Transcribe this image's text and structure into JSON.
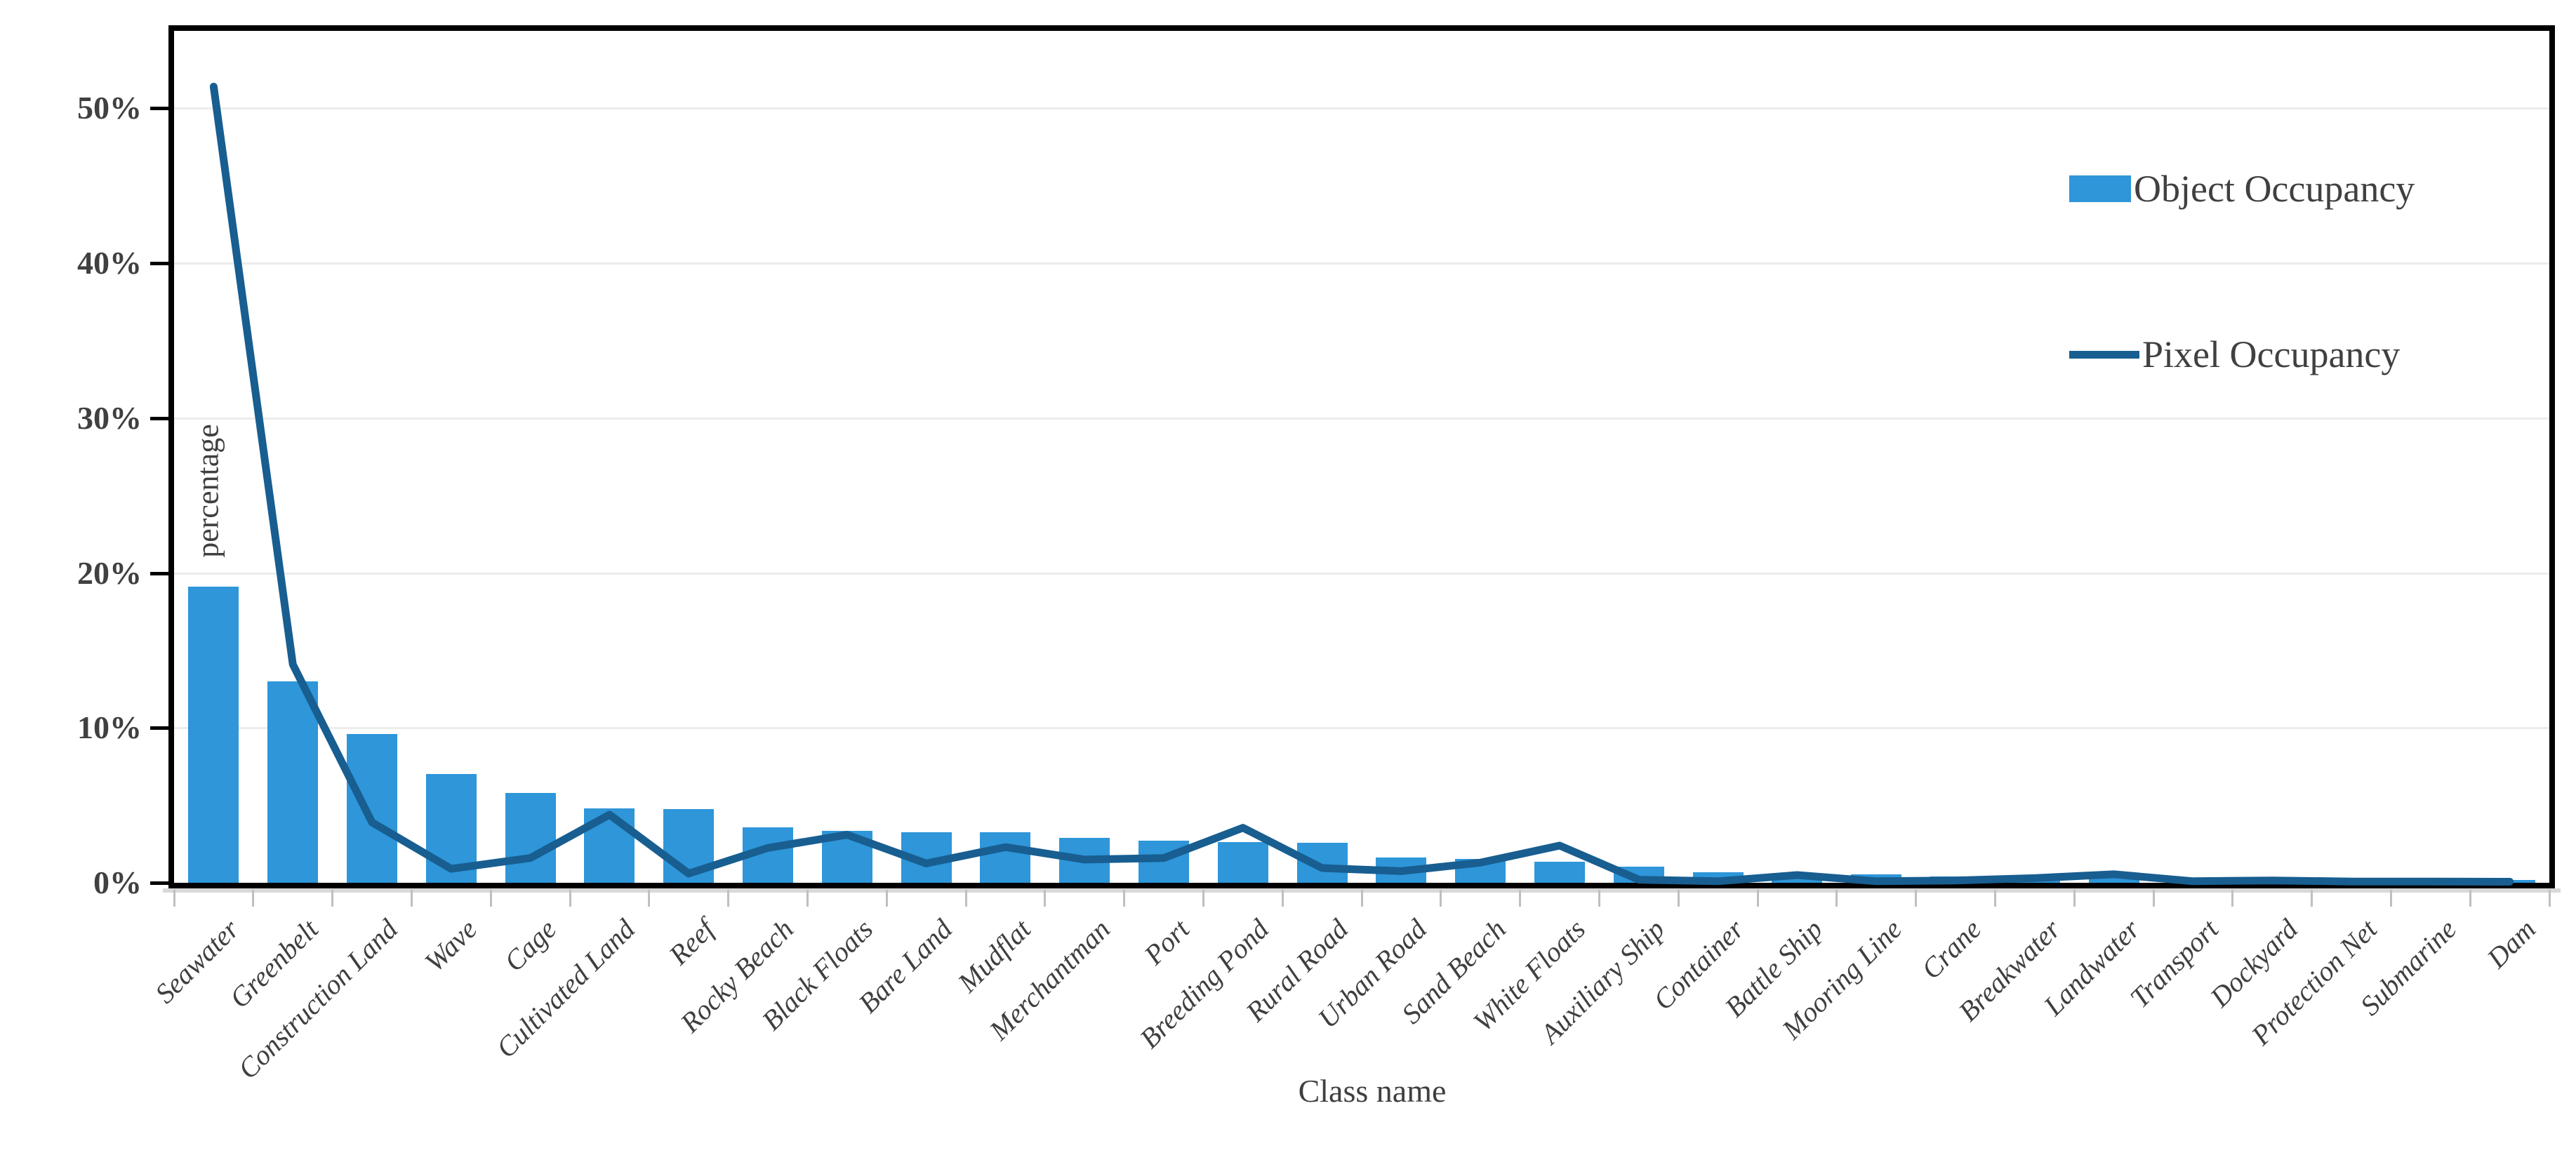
{
  "chart_data": {
    "type": "bar",
    "title": "",
    "xlabel": "Class name",
    "ylabel": "percentage",
    "y_ticks": [
      "0%",
      "10%",
      "20%",
      "30%",
      "40%",
      "50%"
    ],
    "ylim": [
      0,
      55
    ],
    "grid": true,
    "legend_position": "upper-right",
    "categories": [
      "Seawater",
      "Greenbelt",
      "Construction Land",
      "Wave",
      "Cage",
      "Cultivated Land",
      "Reef",
      "Rocky Beach",
      "Black Floats",
      "Bare Land",
      "Mudflat",
      "Merchantman",
      "Port",
      "Breeding Pond",
      "Rural Road",
      "Urban Road",
      "Sand Beach",
      "White Floats",
      "Auxiliary Ship",
      "Container",
      "Battle Ship",
      "Mooring Line",
      "Crane",
      "Breakwater",
      "Landwater",
      "Transport",
      "Dockyard",
      "Protection Net",
      "Submarine",
      "Dam"
    ],
    "series": [
      {
        "name": "Object Occupancy",
        "type": "bar",
        "color": "#2E96D9",
        "values": [
          19.1,
          13.0,
          9.6,
          7.0,
          5.8,
          4.8,
          4.75,
          3.6,
          3.35,
          3.25,
          3.25,
          2.9,
          2.7,
          2.65,
          2.6,
          1.65,
          1.55,
          1.35,
          1.05,
          0.7,
          0.55,
          0.55,
          0.4,
          0.4,
          0.3,
          0.25,
          0.2,
          0.15,
          0.12,
          0.2
        ]
      },
      {
        "name": "Pixel Occupancy",
        "type": "line",
        "color": "#185E90",
        "values": [
          51.4,
          14.1,
          3.9,
          0.9,
          1.6,
          4.4,
          0.6,
          2.25,
          3.1,
          1.25,
          2.3,
          1.5,
          1.6,
          3.55,
          0.95,
          0.75,
          1.3,
          2.4,
          0.2,
          0.1,
          0.5,
          0.1,
          0.15,
          0.3,
          0.55,
          0.1,
          0.15,
          0.08,
          0.08,
          0.07
        ]
      }
    ]
  },
  "colors": {
    "bar": "#2E96D9",
    "line": "#185E90",
    "grid": "#ececec",
    "axis": "#000000",
    "tick_label": "#404040",
    "category_label": "#3f3f3f"
  }
}
